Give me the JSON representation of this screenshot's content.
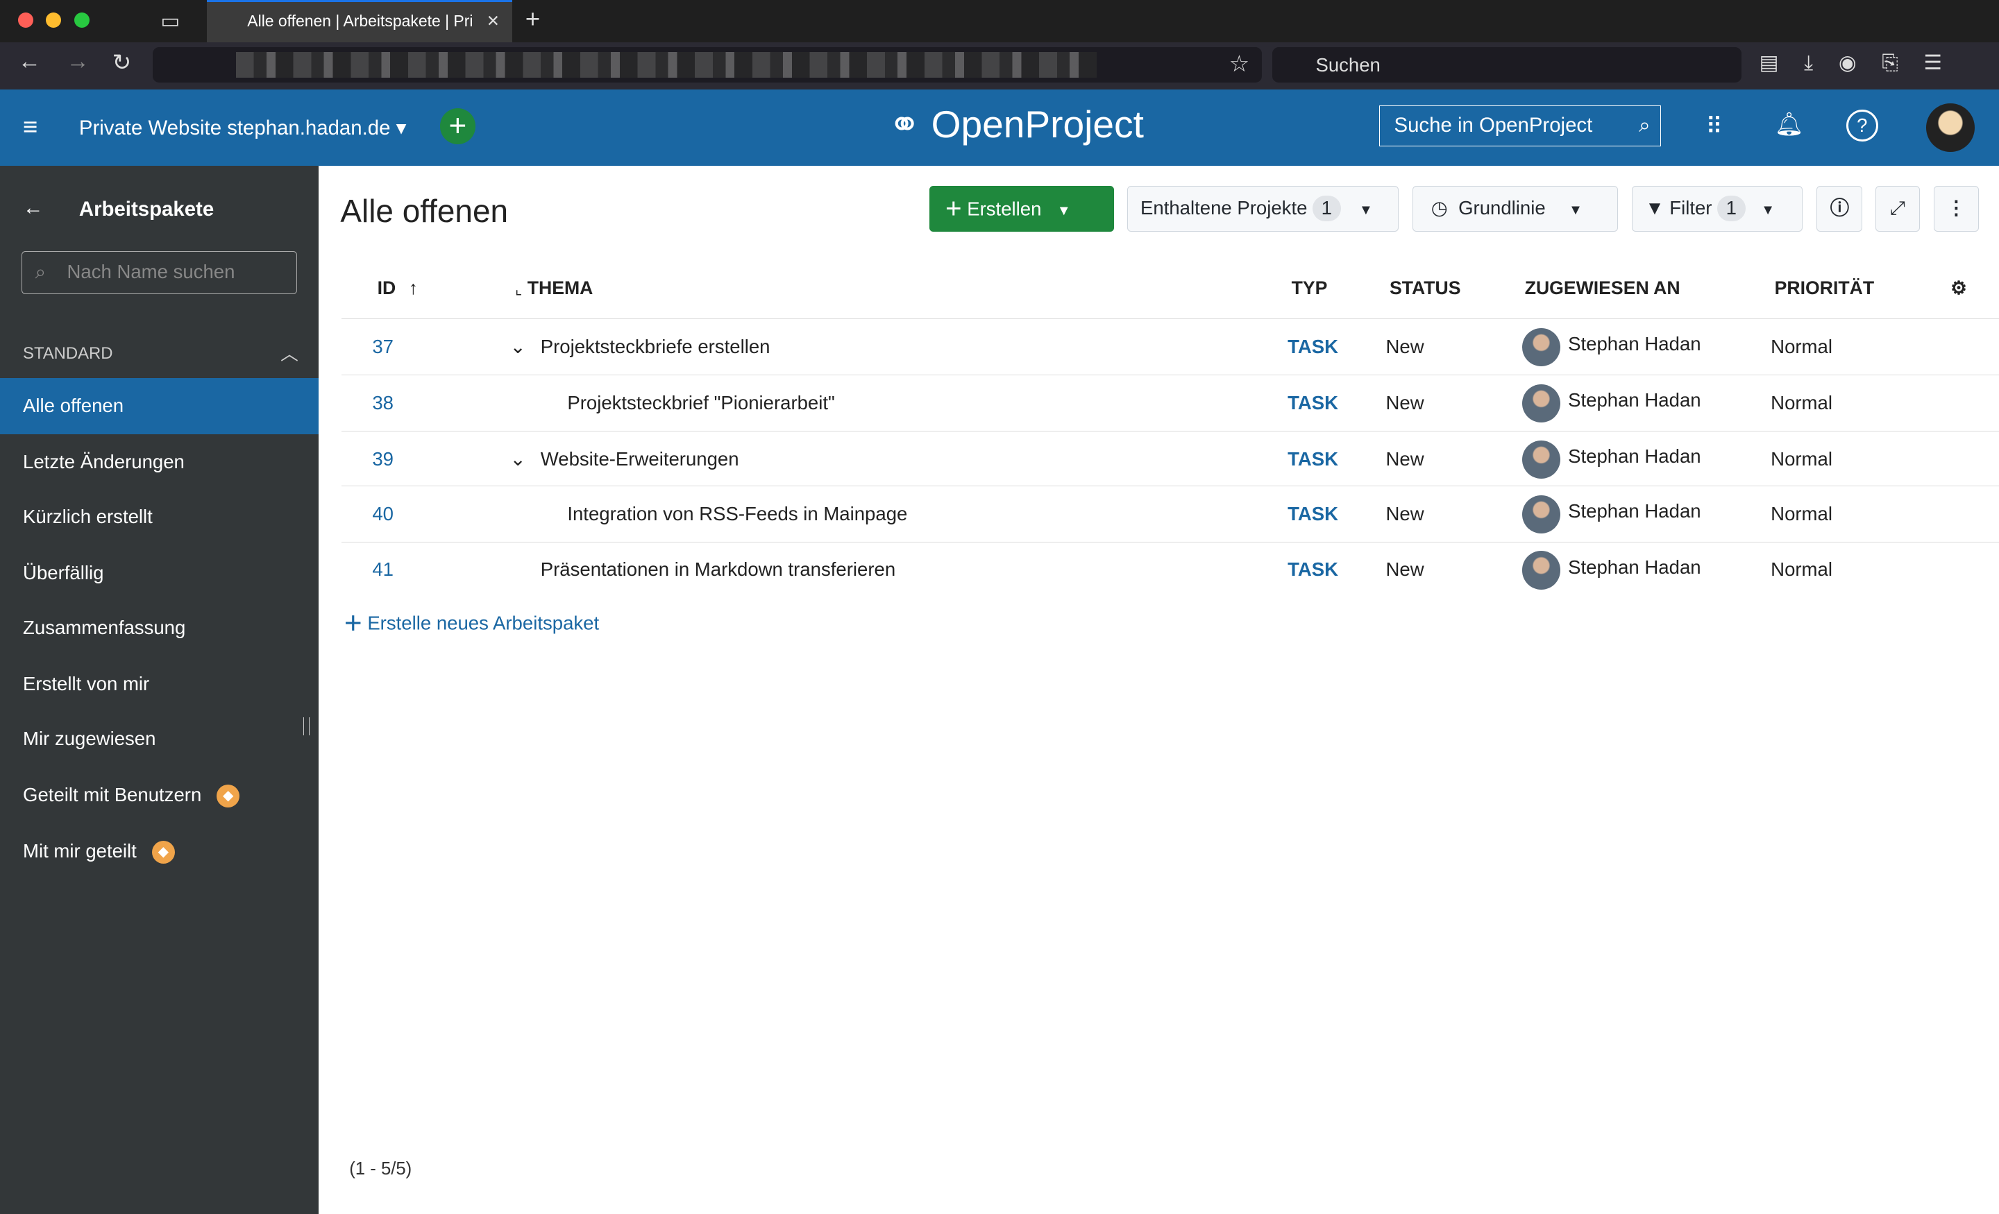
{
  "browser": {
    "tab_title": "Alle offenen | Arbeitspakete | Pri",
    "search_placeholder": "Suchen"
  },
  "header": {
    "project": "Private Website stephan.hadan.de",
    "logo": "OpenProject",
    "search": "Suche in OpenProject"
  },
  "sidebar": {
    "title": "Arbeitspakete",
    "search_placeholder": "Nach Name suchen",
    "section": "STANDARD",
    "items": [
      {
        "label": "Alle offenen",
        "active": true
      },
      {
        "label": "Letzte Änderungen"
      },
      {
        "label": "Kürzlich erstellt"
      },
      {
        "label": "Überfällig"
      },
      {
        "label": "Zusammenfassung"
      },
      {
        "label": "Erstellt von mir"
      },
      {
        "label": "Mir zugewiesen"
      },
      {
        "label": "Geteilt mit Benutzern",
        "badge": "enterprise"
      },
      {
        "label": "Mit mir geteilt",
        "badge": "enterprise"
      }
    ]
  },
  "main": {
    "title": "Alle offenen",
    "create": "Erstellen",
    "projects": "Enthaltene Projekte",
    "projects_count": "1",
    "baseline": "Grundlinie",
    "filter": "Filter",
    "filter_count": "1",
    "columns": {
      "id": "ID",
      "subject": "THEMA",
      "type": "TYP",
      "status": "STATUS",
      "assignee": "ZUGEWIESEN AN",
      "priority": "PRIORITÄT"
    },
    "rows": [
      {
        "id": "37",
        "subject": "Projektsteckbriefe erstellen",
        "type": "TASK",
        "status": "New",
        "assignee": "Stephan Hadan",
        "priority": "Normal",
        "expandable": true,
        "level": 0
      },
      {
        "id": "38",
        "subject": "Projektsteckbrief \"Pionierarbeit\"",
        "type": "TASK",
        "status": "New",
        "assignee": "Stephan Hadan",
        "priority": "Normal",
        "level": 1
      },
      {
        "id": "39",
        "subject": "Website-Erweiterungen",
        "type": "TASK",
        "status": "New",
        "assignee": "Stephan Hadan",
        "priority": "Normal",
        "expandable": true,
        "level": 0
      },
      {
        "id": "40",
        "subject": "Integration von RSS-Feeds in Mainpage",
        "type": "TASK",
        "status": "New",
        "assignee": "Stephan Hadan",
        "priority": "Normal",
        "level": 1
      },
      {
        "id": "41",
        "subject": "Präsentationen in Markdown transferieren",
        "type": "TASK",
        "status": "New",
        "assignee": "Stephan Hadan",
        "priority": "Normal",
        "level": 0
      }
    ],
    "add_row": "Erstelle neues Arbeitspaket",
    "pagination": "(1 - 5/5)"
  },
  "colors": {
    "header": "#1a67a3",
    "sidebar": "#333739",
    "create": "#1f883d"
  }
}
